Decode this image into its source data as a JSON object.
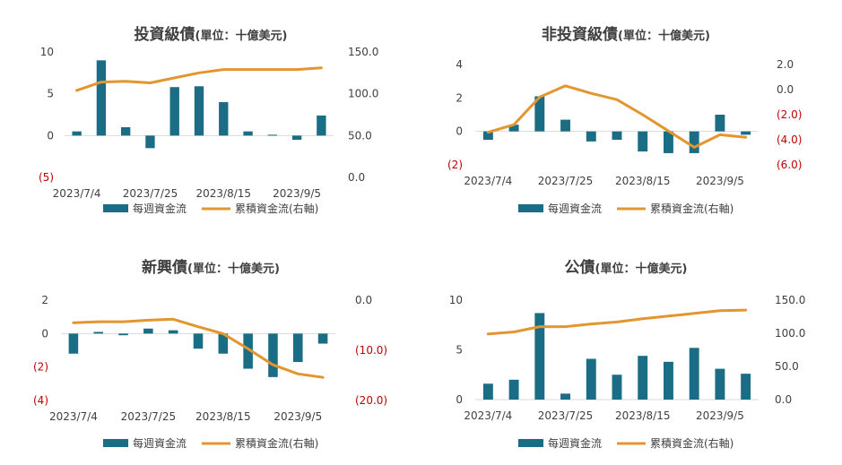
{
  "colors": {
    "bar": "#1b6d85",
    "line": "#e3952f",
    "neg": "#c00000",
    "text": "#404040",
    "grid": "#d9d9d9"
  },
  "legend": {
    "bar_label": "每週資金流",
    "line_label": "累積資金流(右軸)"
  },
  "chart_data": [
    {
      "type": "bar",
      "title_main": "投資級債",
      "title_unit": "(單位：十億美元)",
      "x": [
        "2023/7/4",
        "2023/7/11",
        "2023/7/18",
        "2023/7/25",
        "2023/8/1",
        "2023/8/8",
        "2023/8/15",
        "2023/8/22",
        "2023/8/29",
        "2023/9/5",
        "2023/9/12"
      ],
      "x_ticks": [
        "2023/7/4",
        "2023/7/25",
        "2023/8/15",
        "2023/9/5"
      ],
      "series": [
        {
          "name": "每週資金流",
          "axis": "left",
          "type": "bar",
          "values": [
            0.5,
            9.0,
            1.0,
            -1.5,
            5.8,
            5.9,
            4.0,
            0.5,
            0.1,
            -0.5,
            2.4
          ]
        },
        {
          "name": "累積資金流(右軸)",
          "axis": "right",
          "type": "line",
          "values": [
            104,
            114,
            115,
            113,
            119,
            125,
            129,
            129,
            129,
            129,
            131
          ]
        }
      ],
      "y_left": {
        "min": -5,
        "max": 10,
        "ticks": [
          10,
          5,
          0,
          -5
        ],
        "labels": [
          "10",
          "5",
          "0",
          "(5)"
        ]
      },
      "y_right": {
        "min": 0,
        "max": 150,
        "ticks": [
          150,
          100,
          50,
          0
        ],
        "labels": [
          "150.0",
          "100.0",
          "50.0",
          "0.0"
        ]
      }
    },
    {
      "type": "bar",
      "title_main": "非投資級債",
      "title_unit": "(單位：十億美元)",
      "x": [
        "2023/7/4",
        "2023/7/11",
        "2023/7/18",
        "2023/7/25",
        "2023/8/1",
        "2023/8/8",
        "2023/8/15",
        "2023/8/22",
        "2023/8/29",
        "2023/9/5",
        "2023/9/12"
      ],
      "x_ticks": [
        "2023/7/4",
        "2023/7/25",
        "2023/8/15",
        "2023/9/5"
      ],
      "series": [
        {
          "name": "每週資金流",
          "axis": "left",
          "type": "bar",
          "values": [
            -0.5,
            0.4,
            2.1,
            0.7,
            -0.6,
            -0.5,
            -1.2,
            -1.3,
            -1.3,
            1.0,
            -0.2
          ]
        },
        {
          "name": "累積資金流(右軸)",
          "axis": "right",
          "type": "line",
          "values": [
            -3.4,
            -2.8,
            -0.6,
            0.3,
            -0.3,
            -0.8,
            -2.0,
            -3.3,
            -4.6,
            -3.6,
            -3.8
          ]
        }
      ],
      "y_left": {
        "min": -2,
        "max": 4,
        "ticks": [
          4,
          2,
          0,
          -2
        ],
        "labels": [
          "4",
          "2",
          "0",
          "(2)"
        ]
      },
      "y_right": {
        "min": -6,
        "max": 2,
        "ticks": [
          2,
          0,
          -2,
          -4,
          -6
        ],
        "labels": [
          "2.0",
          "0.0",
          "(2.0)",
          "(4.0)",
          "(6.0)"
        ]
      }
    },
    {
      "type": "bar",
      "title_main": "新興債",
      "title_unit": "(單位：十億美元)",
      "x": [
        "2023/7/4",
        "2023/7/11",
        "2023/7/18",
        "2023/7/25",
        "2023/8/1",
        "2023/8/8",
        "2023/8/15",
        "2023/8/22",
        "2023/8/29",
        "2023/9/5",
        "2023/9/12"
      ],
      "x_ticks": [
        "2023/7/4",
        "2023/7/25",
        "2023/8/15",
        "2023/9/5"
      ],
      "series": [
        {
          "name": "每週資金流",
          "axis": "left",
          "type": "bar",
          "values": [
            -1.2,
            0.1,
            -0.1,
            0.3,
            0.2,
            -0.9,
            -1.2,
            -2.1,
            -2.6,
            -1.7,
            -0.6
          ]
        },
        {
          "name": "累積資金流(右軸)",
          "axis": "right",
          "type": "line",
          "values": [
            -4.5,
            -4.3,
            -4.3,
            -4.0,
            -3.8,
            -5.3,
            -6.7,
            -9.7,
            -12.9,
            -14.7,
            -15.4
          ]
        }
      ],
      "y_left": {
        "min": -4,
        "max": 2,
        "ticks": [
          2,
          0,
          -2,
          -4
        ],
        "labels": [
          "2",
          "0",
          "(2)",
          "(4)"
        ]
      },
      "y_right": {
        "min": -20,
        "max": 0,
        "ticks": [
          0,
          -10,
          -20
        ],
        "labels": [
          "0.0",
          "(10.0)",
          "(20.0)"
        ]
      }
    },
    {
      "type": "bar",
      "title_main": "公債",
      "title_unit": "(單位：十億美元)",
      "x": [
        "2023/7/4",
        "2023/7/11",
        "2023/7/18",
        "2023/7/25",
        "2023/8/1",
        "2023/8/8",
        "2023/8/15",
        "2023/8/22",
        "2023/8/29",
        "2023/9/5",
        "2023/9/12"
      ],
      "x_ticks": [
        "2023/7/4",
        "2023/7/25",
        "2023/8/15",
        "2023/9/5"
      ],
      "series": [
        {
          "name": "每週資金流",
          "axis": "left",
          "type": "bar",
          "values": [
            1.6,
            2.0,
            8.7,
            0.6,
            4.1,
            2.5,
            4.4,
            3.8,
            5.2,
            3.1,
            2.6
          ]
        },
        {
          "name": "累積資金流(右軸)",
          "axis": "right",
          "type": "line",
          "values": [
            99,
            102,
            110,
            110,
            114,
            117,
            122,
            126,
            130,
            134,
            135
          ]
        }
      ],
      "y_left": {
        "min": 0,
        "max": 10,
        "ticks": [
          10,
          5,
          0
        ],
        "labels": [
          "10",
          "5",
          "0"
        ]
      },
      "y_right": {
        "min": 0,
        "max": 150,
        "ticks": [
          150,
          100,
          50,
          0
        ],
        "labels": [
          "150.0",
          "100.0",
          "50.0",
          "0.0"
        ]
      }
    }
  ]
}
